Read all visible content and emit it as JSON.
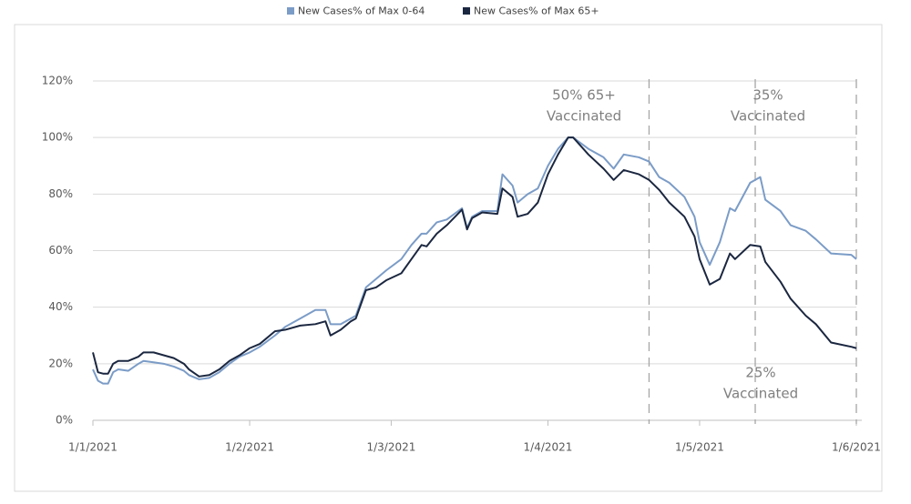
{
  "chart_data": {
    "type": "line",
    "x": [
      "1/1/2021",
      "2/1/2021",
      "3/1/2021",
      "4/1/2021",
      "5/1/2021",
      "6/1/2021",
      "8/1/2021",
      "10/1/2021",
      "11/1/2021",
      "13/1/2021",
      "15/1/2021",
      "17/1/2021",
      "19/1/2021",
      "20/1/2021",
      "22/1/2021",
      "24/1/2021",
      "26/1/2021",
      "28/1/2021",
      "30/1/2021",
      "1/2/2021",
      "3/2/2021",
      "6/2/2021",
      "8/2/2021",
      "11/2/2021",
      "14/2/2021",
      "16/2/2021",
      "17/2/2021",
      "19/2/2021",
      "21/2/2021",
      "22/2/2021",
      "24/2/2021",
      "26/2/2021",
      "28/2/2021",
      "3/3/2021",
      "5/3/2021",
      "7/3/2021",
      "8/3/2021",
      "10/3/2021",
      "12/3/2021",
      "15/3/2021",
      "16/3/2021",
      "17/3/2021",
      "19/3/2021",
      "22/3/2021",
      "23/3/2021",
      "25/3/2021",
      "26/3/2021",
      "28/3/2021",
      "30/3/2021",
      "1/4/2021",
      "3/4/2021",
      "5/4/2021",
      "6/4/2021",
      "9/4/2021",
      "12/4/2021",
      "14/4/2021",
      "16/4/2021",
      "19/4/2021",
      "21/4/2021",
      "23/4/2021",
      "25/4/2021",
      "28/4/2021",
      "30/4/2021",
      "1/5/2021",
      "3/5/2021",
      "5/5/2021",
      "7/5/2021",
      "8/5/2021",
      "11/5/2021",
      "13/5/2021",
      "14/5/2021",
      "17/5/2021",
      "19/5/2021",
      "22/5/2021",
      "24/5/2021",
      "27/5/2021",
      "31/5/2021",
      "1/6/2021"
    ],
    "series": [
      {
        "name": "New Cases% of Max 0-64",
        "color": "#7b9cc7",
        "values": [
          18,
          14,
          13,
          13,
          17,
          18,
          17.5,
          20,
          21,
          20.5,
          20,
          19,
          17.5,
          16,
          14.5,
          15,
          17,
          20,
          22.5,
          24,
          26,
          30,
          33,
          36,
          39,
          39,
          34,
          34,
          36,
          37,
          47,
          50,
          53,
          57,
          62,
          66,
          66,
          70,
          71,
          75,
          68,
          72,
          74,
          74,
          87,
          83,
          77,
          80,
          82,
          90,
          96,
          100,
          100,
          96,
          93,
          89,
          94,
          93,
          91.5,
          86,
          84,
          79,
          72,
          63,
          55,
          63,
          75,
          74,
          84,
          86,
          78,
          74,
          69,
          67,
          64,
          59,
          58.5,
          57
        ]
      },
      {
        "name": "New Cases% of Max 65+",
        "color": "#1b2740",
        "values": [
          24,
          17,
          16.5,
          16.5,
          20,
          21,
          21,
          22.5,
          24,
          24,
          23,
          22,
          20,
          18,
          15.5,
          16,
          18,
          21,
          23,
          25.5,
          27,
          31.5,
          32,
          33.5,
          34,
          35,
          30,
          32,
          35,
          36,
          46,
          47,
          49.5,
          52,
          57,
          62,
          61.5,
          66,
          69,
          74.5,
          67.5,
          71.5,
          73.5,
          73,
          82,
          79,
          72,
          73,
          77,
          87,
          94,
          100,
          100,
          94,
          89,
          85,
          88.5,
          87,
          85,
          81.5,
          77,
          72,
          65,
          57,
          48,
          50,
          59,
          57,
          62,
          61.5,
          56,
          49,
          43,
          37,
          34,
          27.5,
          26,
          25.5
        ]
      }
    ],
    "xlim": [
      "1/1/2021",
      "1/6/2021"
    ],
    "xticks": [
      "1/1/2021",
      "1/2/2021",
      "1/3/2021",
      "1/4/2021",
      "1/5/2021",
      "1/6/2021"
    ],
    "ylim": [
      0,
      120
    ],
    "yticks": [
      {
        "value": 0,
        "label": "0%"
      },
      {
        "value": 20,
        "label": "20%"
      },
      {
        "value": 40,
        "label": "40%"
      },
      {
        "value": 60,
        "label": "60%"
      },
      {
        "value": 80,
        "label": "80%"
      },
      {
        "value": 100,
        "label": "100%"
      },
      {
        "value": 120,
        "label": "120%"
      }
    ],
    "grid": true,
    "legend": "top",
    "reference_lines": [
      "21/4/2021",
      "12/5/2021",
      "1/6/2021"
    ],
    "annotations": [
      [
        "50% 65+",
        "Vaccinated"
      ],
      [
        "35%",
        "Vaccinated"
      ],
      [
        "25%",
        "Vaccinated"
      ]
    ]
  }
}
